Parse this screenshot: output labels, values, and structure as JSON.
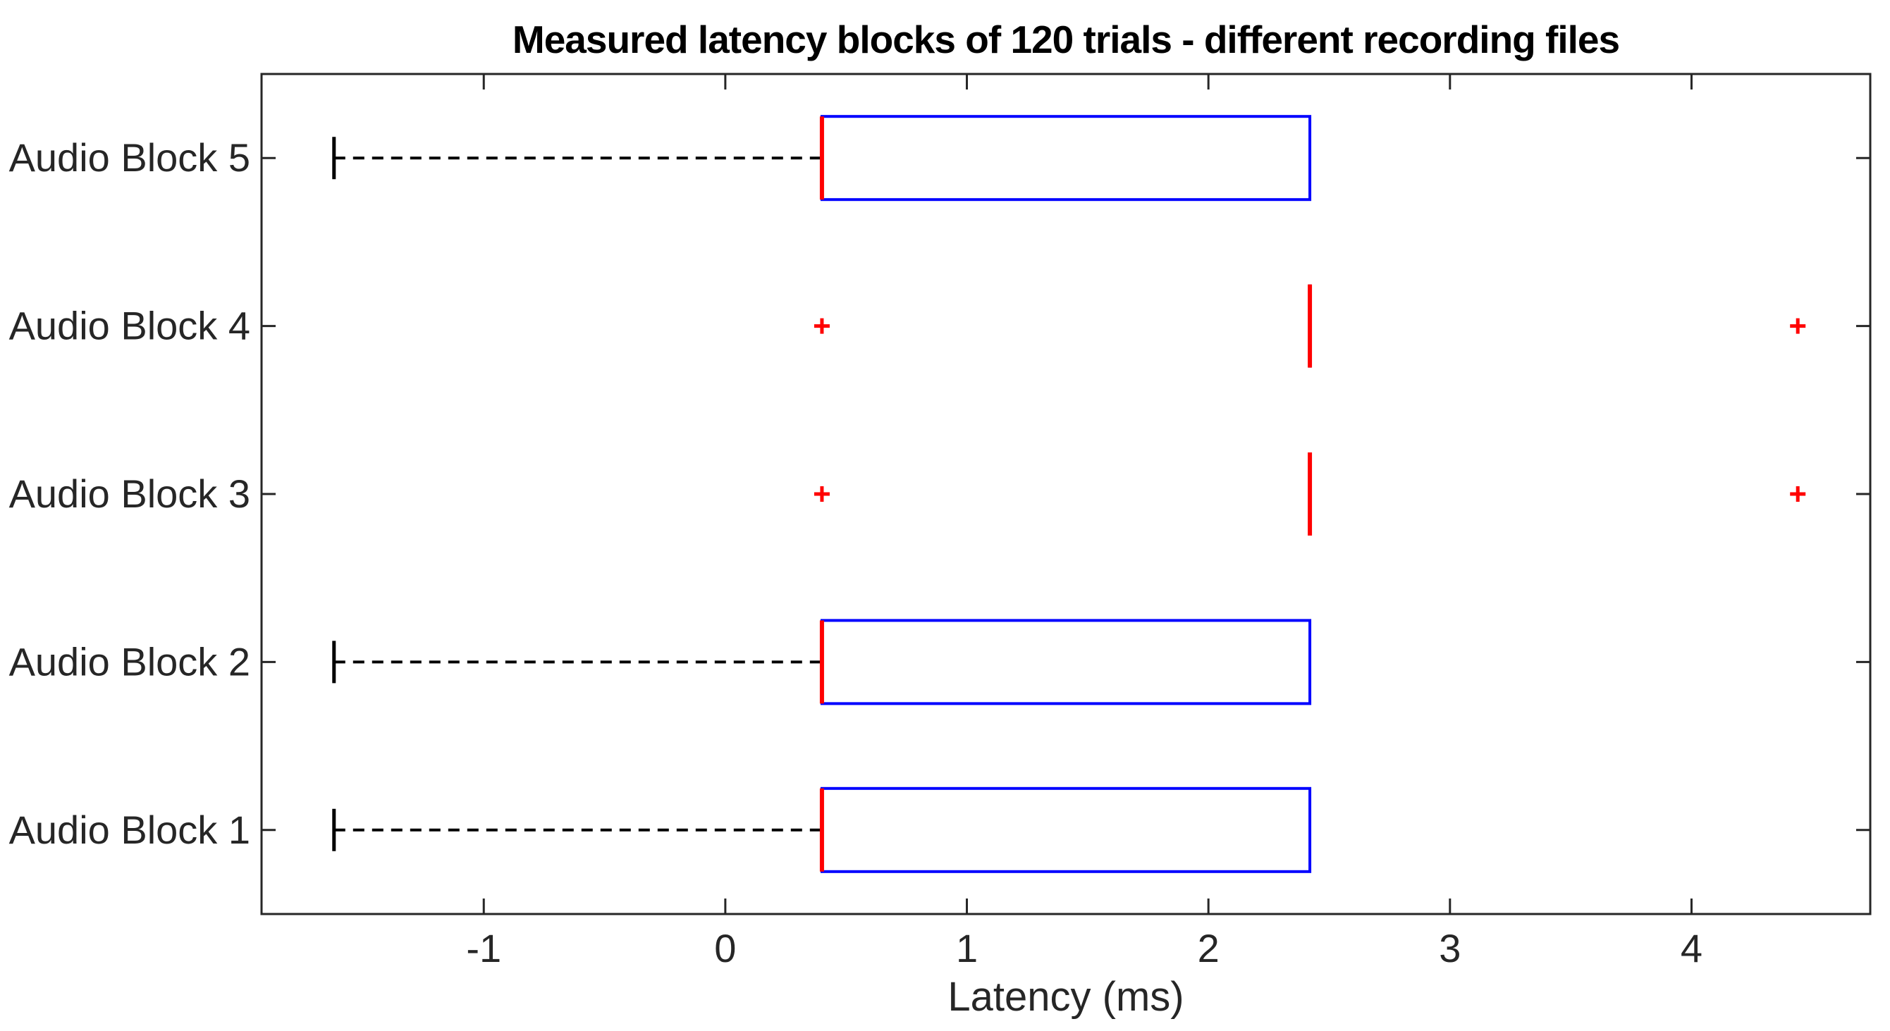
{
  "chart_data": {
    "type": "boxplot",
    "orientation": "horizontal",
    "title": "Measured latency blocks of 120 trials - different recording files",
    "xlabel": "Latency (ms)",
    "ylabel": "",
    "categories": [
      "Audio Block 1",
      "Audio Block 2",
      "Audio Block 3",
      "Audio Block 4",
      "Audio Block 5"
    ],
    "categories_order_note": "index 0 drawn at bottom of axis, index 4 at top",
    "xlim": [
      -1.92,
      4.74
    ],
    "xticks": [
      -1,
      0,
      1,
      2,
      3,
      4
    ],
    "grid": false,
    "legend": false,
    "series": [
      {
        "name": "Audio Block 1",
        "whisker_low": -1.62,
        "q1": 0.4,
        "median": 0.4,
        "q3": 2.42,
        "whisker_high": 2.42,
        "outliers": []
      },
      {
        "name": "Audio Block 2",
        "whisker_low": -1.62,
        "q1": 0.4,
        "median": 0.4,
        "q3": 2.42,
        "whisker_high": 2.42,
        "outliers": []
      },
      {
        "name": "Audio Block 3",
        "whisker_low": 2.42,
        "q1": 2.42,
        "median": 2.42,
        "q3": 2.42,
        "whisker_high": 2.42,
        "outliers": [
          0.4,
          4.44
        ]
      },
      {
        "name": "Audio Block 4",
        "whisker_low": 2.42,
        "q1": 2.42,
        "median": 2.42,
        "q3": 2.42,
        "whisker_high": 2.42,
        "outliers": [
          0.4,
          4.44
        ]
      },
      {
        "name": "Audio Block 5",
        "whisker_low": -1.62,
        "q1": 0.4,
        "median": 0.4,
        "q3": 2.42,
        "whisker_high": 2.42,
        "outliers": []
      }
    ],
    "colors": {
      "box": "#0000ff",
      "median": "#ff0000",
      "whisker": "#000000",
      "outlier_marker": "#ff0000",
      "axis": "#262626",
      "tick_label": "#262626",
      "title_color": "#000000",
      "background": "#ffffff"
    }
  }
}
